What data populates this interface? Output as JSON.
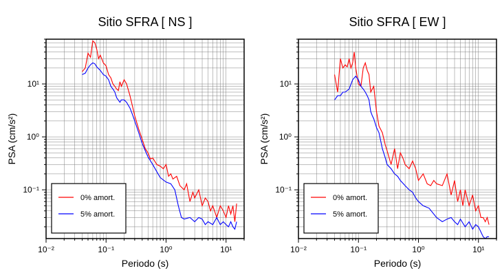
{
  "chart_data": [
    {
      "type": "line",
      "title": "Sitio SFRA [ NS ]",
      "xlabel": "Periodo (s)",
      "ylabel": "PSA (cm/s²)",
      "xscale": "log",
      "yscale": "log",
      "xlim": [
        0.01,
        20
      ],
      "ylim": [
        0.012,
        70
      ],
      "grid": true,
      "legend_position": "bottom-left",
      "x_tick_labels": [
        "10⁻²",
        "10⁻¹",
        "10⁰",
        "10¹"
      ],
      "y_tick_labels": [
        "10⁻¹",
        "10⁰",
        "10¹"
      ],
      "series": [
        {
          "name": "0% amort.",
          "color": "#ff0000",
          "x": [
            0.04,
            0.045,
            0.05,
            0.055,
            0.06,
            0.065,
            0.07,
            0.075,
            0.08,
            0.09,
            0.1,
            0.11,
            0.12,
            0.13,
            0.14,
            0.15,
            0.16,
            0.17,
            0.18,
            0.2,
            0.22,
            0.25,
            0.28,
            0.3,
            0.35,
            0.4,
            0.45,
            0.5,
            0.55,
            0.6,
            0.7,
            0.8,
            0.9,
            1.0,
            1.1,
            1.2,
            1.3,
            1.5,
            1.7,
            2.0,
            2.2,
            2.5,
            2.8,
            3.0,
            3.5,
            4.0,
            4.5,
            5.0,
            5.5,
            6.0,
            7.0,
            8.0,
            9.0,
            10.0,
            11.0,
            12.0,
            13.0,
            14.0,
            15.0
          ],
          "y": [
            17,
            20,
            38,
            32,
            65,
            60,
            45,
            30,
            35,
            25,
            22,
            15,
            13,
            10,
            9,
            8,
            7.5,
            11,
            9,
            12,
            10,
            6,
            3.5,
            2.5,
            1.4,
            0.9,
            0.6,
            0.5,
            0.38,
            0.4,
            0.3,
            0.28,
            0.25,
            0.3,
            0.18,
            0.2,
            0.16,
            0.18,
            0.12,
            0.1,
            0.13,
            0.06,
            0.09,
            0.07,
            0.1,
            0.05,
            0.07,
            0.06,
            0.04,
            0.05,
            0.03,
            0.05,
            0.04,
            0.03,
            0.05,
            0.035,
            0.05,
            0.025,
            0.055
          ]
        },
        {
          "name": "5% amort.",
          "color": "#0000ff",
          "x": [
            0.04,
            0.045,
            0.05,
            0.055,
            0.06,
            0.065,
            0.07,
            0.08,
            0.09,
            0.1,
            0.11,
            0.12,
            0.13,
            0.14,
            0.15,
            0.17,
            0.18,
            0.2,
            0.22,
            0.25,
            0.28,
            0.3,
            0.35,
            0.4,
            0.45,
            0.5,
            0.6,
            0.7,
            0.8,
            1.0,
            1.2,
            1.4,
            1.6,
            1.8,
            2.0,
            2.5,
            3.0,
            3.5,
            4.0,
            4.5,
            5.0,
            6.0,
            7.0,
            8.0,
            9.0,
            10.0,
            11.0,
            12.0,
            13.0,
            14.0,
            15.0
          ],
          "y": [
            15,
            16,
            20,
            23,
            25,
            24,
            21,
            18,
            15,
            14,
            12,
            9,
            8,
            7,
            5.5,
            4.5,
            5,
            5,
            4.5,
            3.5,
            2.5,
            2,
            1.2,
            0.75,
            0.55,
            0.42,
            0.3,
            0.22,
            0.17,
            0.14,
            0.13,
            0.1,
            0.05,
            0.03,
            0.028,
            0.03,
            0.025,
            0.03,
            0.028,
            0.022,
            0.025,
            0.022,
            0.03,
            0.022,
            0.025,
            0.022,
            0.02,
            0.025,
            0.02,
            0.018,
            0.025
          ]
        }
      ]
    },
    {
      "type": "line",
      "title": "Sitio SFRA [ EW ]",
      "xlabel": "Periodo (s)",
      "ylabel": "PSA (cm/s²)",
      "xscale": "log",
      "yscale": "log",
      "xlim": [
        0.01,
        20
      ],
      "ylim": [
        0.012,
        70
      ],
      "grid": true,
      "legend_position": "bottom-left",
      "x_tick_labels": [
        "10⁻²",
        "10⁻¹",
        "10⁰",
        "10¹"
      ],
      "y_tick_labels": [
        "10⁻¹",
        "10⁰",
        "10¹"
      ],
      "series": [
        {
          "name": "0% amort.",
          "color": "#ff0000",
          "x": [
            0.04,
            0.045,
            0.05,
            0.055,
            0.06,
            0.065,
            0.07,
            0.075,
            0.08,
            0.085,
            0.09,
            0.1,
            0.11,
            0.12,
            0.13,
            0.14,
            0.15,
            0.16,
            0.17,
            0.18,
            0.2,
            0.22,
            0.25,
            0.28,
            0.3,
            0.35,
            0.4,
            0.45,
            0.5,
            0.55,
            0.6,
            0.7,
            0.8,
            0.9,
            1.0,
            1.2,
            1.4,
            1.6,
            1.8,
            2.0,
            2.5,
            3.0,
            3.5,
            4.0,
            4.5,
            5.0,
            5.5,
            6.0,
            7.0,
            8.0,
            9.0,
            10.0,
            11.0,
            12.0,
            13.0,
            14.0,
            15.0
          ],
          "y": [
            15,
            7,
            30,
            20,
            23,
            21,
            30,
            20,
            25,
            40,
            20,
            10,
            9,
            20,
            25,
            18,
            15,
            7,
            8,
            9,
            3,
            1.6,
            1.2,
            0.7,
            0.55,
            0.3,
            0.6,
            0.25,
            0.5,
            0.4,
            0.3,
            0.25,
            0.35,
            0.25,
            0.15,
            0.2,
            0.13,
            0.12,
            0.15,
            0.13,
            0.12,
            0.2,
            0.08,
            0.15,
            0.06,
            0.1,
            0.05,
            0.1,
            0.05,
            0.08,
            0.04,
            0.05,
            0.03,
            0.03,
            0.025,
            0.03,
            0.022
          ]
        },
        {
          "name": "5% amort.",
          "color": "#0000ff",
          "x": [
            0.04,
            0.045,
            0.05,
            0.055,
            0.06,
            0.07,
            0.08,
            0.09,
            0.1,
            0.11,
            0.12,
            0.13,
            0.14,
            0.15,
            0.16,
            0.17,
            0.18,
            0.2,
            0.22,
            0.25,
            0.28,
            0.3,
            0.35,
            0.4,
            0.45,
            0.5,
            0.6,
            0.7,
            0.8,
            0.9,
            1.0,
            1.2,
            1.5,
            2.0,
            2.5,
            3.0,
            3.5,
            4.0,
            4.5,
            5.0,
            6.0,
            7.0,
            8.0,
            9.0,
            10.0,
            11.0,
            12.0,
            13.0,
            14.0,
            15.0
          ],
          "y": [
            5,
            6,
            6,
            7,
            7,
            8,
            12,
            14,
            12,
            9,
            8,
            7,
            6,
            5,
            3,
            2.5,
            2.2,
            1.5,
            1.2,
            0.6,
            0.4,
            0.3,
            0.25,
            0.2,
            0.18,
            0.15,
            0.12,
            0.1,
            0.09,
            0.07,
            0.06,
            0.05,
            0.045,
            0.03,
            0.025,
            0.028,
            0.03,
            0.025,
            0.022,
            0.028,
            0.02,
            0.025,
            0.018,
            0.022,
            0.02,
            0.016,
            0.013,
            0.012,
            0.013,
            0.013
          ]
        }
      ]
    }
  ]
}
